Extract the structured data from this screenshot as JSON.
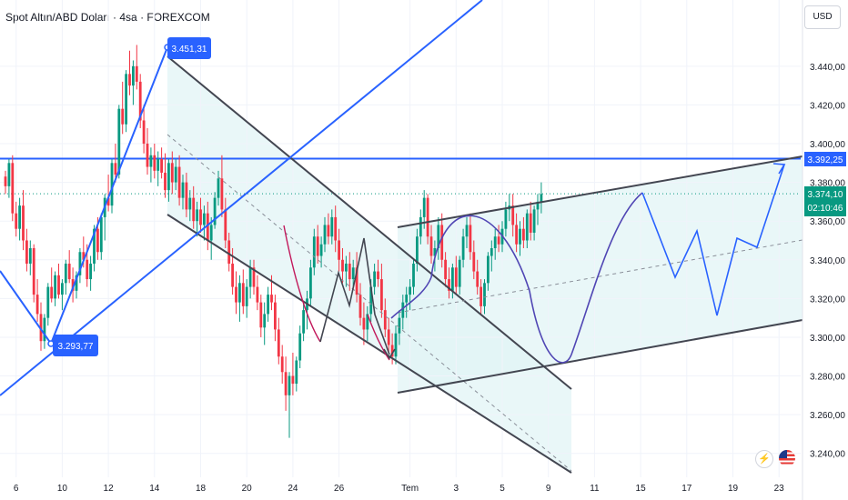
{
  "header": {
    "title": "Spot Altın/ABD Doları · 4sa · FOREXCOM",
    "currency_button": "USD"
  },
  "colors": {
    "up": "#089981",
    "down": "#f23645",
    "accent": "#2962ff",
    "channel": "#434651",
    "fill": "#e0f3f5",
    "arc": "#5046b4",
    "swing": "#c2185b"
  },
  "icons": {
    "alert": "lightning-icon",
    "flag": "us-flag-icon"
  },
  "tags": {
    "high": "3.451,31",
    "low": "3.293,77",
    "resistance": "3.392,25",
    "last_price": "3.374,10",
    "countdown": "02:10:46"
  },
  "chart_data": {
    "type": "candlestick",
    "symbol": "Spot Altın/ABD Doları",
    "interval": "4sa",
    "source": "FOREXCOM",
    "y_axis": {
      "currency": "USD",
      "ylim": [
        3230,
        3462
      ],
      "ticks": [
        "3.440,00",
        "3.420,00",
        "3.400,00",
        "3.380,00",
        "3.360,00",
        "3.340,00",
        "3.320,00",
        "3.300,00",
        "3.280,00",
        "3.260,00",
        "3.240,00"
      ],
      "tick_values": [
        3440,
        3420,
        3400,
        3380,
        3360,
        3340,
        3320,
        3300,
        3280,
        3260,
        3240
      ]
    },
    "x_axis": {
      "ticks": [
        "6",
        "10",
        "12",
        "14",
        "18",
        "20",
        "24",
        "26",
        "Tem",
        "3",
        "5",
        "9",
        "11",
        "15",
        "17",
        "19",
        "23"
      ],
      "tick_index": [
        3,
        16,
        29,
        42,
        55,
        68,
        81,
        94,
        114,
        127,
        140,
        153,
        166,
        179,
        192,
        205,
        218
      ]
    },
    "current_price": 3374.1,
    "resistance_level": 3392.25,
    "swing_high": 3451.31,
    "swing_low": 3293.77,
    "candles": [
      [
        3383,
        3386,
        3374,
        3378
      ],
      [
        3378,
        3392,
        3372,
        3390
      ],
      [
        3390,
        3394,
        3360,
        3364
      ],
      [
        3364,
        3370,
        3352,
        3356
      ],
      [
        3356,
        3372,
        3350,
        3368
      ],
      [
        3368,
        3376,
        3345,
        3350
      ],
      [
        3350,
        3356,
        3334,
        3338
      ],
      [
        3338,
        3350,
        3332,
        3346
      ],
      [
        3346,
        3348,
        3318,
        3322
      ],
      [
        3322,
        3330,
        3308,
        3312
      ],
      [
        3312,
        3318,
        3293,
        3298
      ],
      [
        3298,
        3312,
        3294,
        3310
      ],
      [
        3310,
        3328,
        3306,
        3326
      ],
      [
        3326,
        3336,
        3318,
        3320
      ],
      [
        3320,
        3334,
        3316,
        3332
      ],
      [
        3332,
        3338,
        3320,
        3322
      ],
      [
        3322,
        3330,
        3314,
        3328
      ],
      [
        3328,
        3340,
        3322,
        3338
      ],
      [
        3338,
        3345,
        3328,
        3330
      ],
      [
        3330,
        3336,
        3318,
        3324
      ],
      [
        3324,
        3334,
        3320,
        3332
      ],
      [
        3332,
        3346,
        3328,
        3344
      ],
      [
        3344,
        3352,
        3336,
        3340
      ],
      [
        3340,
        3348,
        3326,
        3330
      ],
      [
        3330,
        3342,
        3324,
        3338
      ],
      [
        3338,
        3358,
        3334,
        3356
      ],
      [
        3356,
        3362,
        3340,
        3344
      ],
      [
        3344,
        3364,
        3340,
        3362
      ],
      [
        3362,
        3374,
        3350,
        3372
      ],
      [
        3372,
        3384,
        3365,
        3368
      ],
      [
        3368,
        3392,
        3364,
        3390
      ],
      [
        3390,
        3400,
        3380,
        3384
      ],
      [
        3384,
        3420,
        3382,
        3418
      ],
      [
        3418,
        3432,
        3405,
        3410
      ],
      [
        3410,
        3438,
        3406,
        3436
      ],
      [
        3436,
        3448,
        3425,
        3430
      ],
      [
        3430,
        3443,
        3420,
        3440
      ],
      [
        3440,
        3451,
        3428,
        3432
      ],
      [
        3432,
        3436,
        3408,
        3412
      ],
      [
        3412,
        3420,
        3395,
        3400
      ],
      [
        3400,
        3408,
        3384,
        3388
      ],
      [
        3388,
        3398,
        3380,
        3394
      ],
      [
        3394,
        3400,
        3382,
        3386
      ],
      [
        3386,
        3396,
        3378,
        3392
      ],
      [
        3392,
        3398,
        3382,
        3385
      ],
      [
        3385,
        3395,
        3372,
        3376
      ],
      [
        3376,
        3392,
        3370,
        3390
      ],
      [
        3390,
        3396,
        3374,
        3380
      ],
      [
        3380,
        3392,
        3376,
        3388
      ],
      [
        3388,
        3394,
        3368,
        3372
      ],
      [
        3372,
        3384,
        3366,
        3380
      ],
      [
        3380,
        3385,
        3362,
        3366
      ],
      [
        3366,
        3376,
        3360,
        3372
      ],
      [
        3372,
        3378,
        3356,
        3360
      ],
      [
        3360,
        3370,
        3352,
        3366
      ],
      [
        3366,
        3372,
        3354,
        3358
      ],
      [
        3358,
        3368,
        3350,
        3364
      ],
      [
        3364,
        3370,
        3345,
        3350
      ],
      [
        3350,
        3362,
        3340,
        3358
      ],
      [
        3358,
        3375,
        3356,
        3372
      ],
      [
        3372,
        3386,
        3368,
        3382
      ],
      [
        3382,
        3394,
        3362,
        3366
      ],
      [
        3366,
        3372,
        3346,
        3350
      ],
      [
        3350,
        3354,
        3334,
        3338
      ],
      [
        3338,
        3346,
        3322,
        3326
      ],
      [
        3326,
        3334,
        3312,
        3318
      ],
      [
        3318,
        3332,
        3308,
        3328
      ],
      [
        3328,
        3335,
        3312,
        3316
      ],
      [
        3316,
        3330,
        3310,
        3326
      ],
      [
        3326,
        3340,
        3320,
        3336
      ],
      [
        3336,
        3340,
        3322,
        3326
      ],
      [
        3326,
        3332,
        3314,
        3318
      ],
      [
        3318,
        3322,
        3300,
        3305
      ],
      [
        3305,
        3318,
        3296,
        3312
      ],
      [
        3312,
        3326,
        3308,
        3322
      ],
      [
        3322,
        3332,
        3314,
        3318
      ],
      [
        3318,
        3322,
        3298,
        3304
      ],
      [
        3304,
        3310,
        3286,
        3290
      ],
      [
        3290,
        3296,
        3276,
        3282
      ],
      [
        3282,
        3290,
        3262,
        3270
      ],
      [
        3270,
        3282,
        3248,
        3280
      ],
      [
        3280,
        3292,
        3270,
        3276
      ],
      [
        3276,
        3290,
        3272,
        3288
      ],
      [
        3288,
        3306,
        3284,
        3302
      ],
      [
        3302,
        3318,
        3298,
        3314
      ],
      [
        3314,
        3324,
        3304,
        3320
      ],
      [
        3320,
        3340,
        3316,
        3336
      ],
      [
        3336,
        3356,
        3332,
        3352
      ],
      [
        3352,
        3358,
        3338,
        3342
      ],
      [
        3342,
        3352,
        3336,
        3348
      ],
      [
        3348,
        3362,
        3344,
        3358
      ],
      [
        3358,
        3364,
        3348,
        3352
      ],
      [
        3352,
        3366,
        3348,
        3362
      ],
      [
        3362,
        3368,
        3344,
        3350
      ],
      [
        3350,
        3356,
        3334,
        3340
      ],
      [
        3340,
        3346,
        3328,
        3334
      ],
      [
        3334,
        3342,
        3326,
        3338
      ],
      [
        3338,
        3344,
        3324,
        3330
      ],
      [
        3330,
        3340,
        3326,
        3336
      ],
      [
        3336,
        3344,
        3318,
        3322
      ],
      [
        3322,
        3328,
        3306,
        3310
      ],
      [
        3310,
        3318,
        3296,
        3304
      ],
      [
        3304,
        3316,
        3298,
        3312
      ],
      [
        3312,
        3330,
        3308,
        3326
      ],
      [
        3326,
        3338,
        3322,
        3334
      ],
      [
        3334,
        3340,
        3326,
        3330
      ],
      [
        3330,
        3338,
        3310,
        3314
      ],
      [
        3314,
        3320,
        3300,
        3304
      ],
      [
        3304,
        3310,
        3292,
        3296
      ],
      [
        3296,
        3302,
        3286,
        3290
      ],
      [
        3290,
        3306,
        3286,
        3302
      ],
      [
        3302,
        3314,
        3296,
        3310
      ],
      [
        3310,
        3322,
        3304,
        3318
      ],
      [
        3318,
        3326,
        3310,
        3322
      ],
      [
        3322,
        3330,
        3314,
        3326
      ],
      [
        3326,
        3340,
        3322,
        3338
      ],
      [
        3338,
        3356,
        3334,
        3352
      ],
      [
        3352,
        3366,
        3348,
        3362
      ],
      [
        3362,
        3376,
        3356,
        3372
      ],
      [
        3372,
        3374,
        3348,
        3352
      ],
      [
        3352,
        3358,
        3338,
        3342
      ],
      [
        3342,
        3350,
        3334,
        3346
      ],
      [
        3346,
        3362,
        3340,
        3358
      ],
      [
        3358,
        3364,
        3336,
        3340
      ],
      [
        3340,
        3344,
        3326,
        3330
      ],
      [
        3330,
        3336,
        3320,
        3324
      ],
      [
        3324,
        3338,
        3320,
        3336
      ],
      [
        3336,
        3342,
        3322,
        3326
      ],
      [
        3326,
        3342,
        3322,
        3340
      ],
      [
        3340,
        3356,
        3336,
        3352
      ],
      [
        3352,
        3362,
        3346,
        3358
      ],
      [
        3358,
        3364,
        3340,
        3344
      ],
      [
        3344,
        3350,
        3330,
        3334
      ],
      [
        3334,
        3340,
        3322,
        3326
      ],
      [
        3326,
        3330,
        3312,
        3316
      ],
      [
        3316,
        3330,
        3312,
        3328
      ],
      [
        3328,
        3344,
        3324,
        3342
      ],
      [
        3342,
        3350,
        3334,
        3346
      ],
      [
        3346,
        3356,
        3340,
        3352
      ],
      [
        3352,
        3358,
        3344,
        3348
      ],
      [
        3348,
        3360,
        3344,
        3356
      ],
      [
        3356,
        3370,
        3352,
        3366
      ],
      [
        3366,
        3374,
        3360,
        3368
      ],
      [
        3368,
        3374,
        3352,
        3358
      ],
      [
        3358,
        3364,
        3344,
        3348
      ],
      [
        3348,
        3360,
        3342,
        3356
      ],
      [
        3356,
        3362,
        3346,
        3350
      ],
      [
        3350,
        3366,
        3346,
        3364
      ],
      [
        3364,
        3370,
        3350,
        3354
      ],
      [
        3354,
        3368,
        3350,
        3366
      ],
      [
        3366,
        3374,
        3358,
        3370
      ],
      [
        3370,
        3380,
        3364,
        3374
      ]
    ]
  }
}
